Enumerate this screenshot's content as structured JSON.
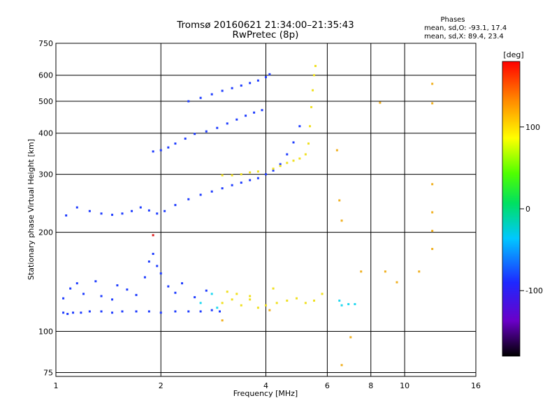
{
  "chart_data": {
    "type": "scatter",
    "title_line1": "Tromsø 20160621 21:34:00–21:35:43",
    "title_line2": "RwPretec (8p)",
    "xlabel": "Frequency [MHz]",
    "ylabel": "Stationary phase Virtual Height [km]",
    "x_scale": "log",
    "y_scale": "log",
    "xlim": [
      1,
      16
    ],
    "ylim": [
      73,
      750
    ],
    "x_ticks": [
      1,
      2,
      4,
      6,
      8,
      10,
      16
    ],
    "x_tick_labels": [
      "1",
      "2",
      "4",
      "6",
      "8",
      "10",
      "16"
    ],
    "y_ticks": [
      75,
      100,
      200,
      300,
      400,
      500,
      600,
      750
    ],
    "y_tick_labels": [
      "75",
      "100",
      "200",
      "300",
      "400",
      "500",
      "600",
      "750"
    ],
    "grid": true,
    "stats": {
      "header": "Phases",
      "line1": "mean, sd,O: -93.1, 17.4",
      "line2": "mean, sd,X:  89.4, 23.4"
    },
    "colorbar": {
      "label": "[deg]",
      "range": [
        -180,
        180
      ],
      "ticks": [
        100,
        0,
        -100
      ],
      "tick_labels": [
        "100",
        "0",
        "-100"
      ]
    },
    "series": [
      {
        "points": [
          [
            1.05,
            114
          ],
          [
            1.08,
            113
          ],
          [
            1.12,
            114
          ],
          [
            1.18,
            114
          ],
          [
            1.25,
            115
          ],
          [
            1.35,
            115
          ],
          [
            1.45,
            114
          ],
          [
            1.55,
            115
          ],
          [
            1.7,
            115
          ],
          [
            1.85,
            115
          ],
          [
            2.0,
            114
          ],
          [
            2.2,
            115
          ],
          [
            2.4,
            115
          ],
          [
            2.6,
            115
          ],
          [
            2.8,
            116
          ],
          [
            2.95,
            115
          ],
          [
            1.05,
            126
          ],
          [
            1.1,
            135
          ],
          [
            1.15,
            140
          ],
          [
            1.2,
            130
          ],
          [
            1.3,
            142
          ],
          [
            1.35,
            128
          ],
          [
            1.45,
            125
          ],
          [
            1.5,
            138
          ],
          [
            1.6,
            134
          ],
          [
            1.7,
            129
          ],
          [
            1.8,
            146
          ],
          [
            1.85,
            163
          ],
          [
            1.9,
            172
          ],
          [
            1.95,
            158
          ],
          [
            2.0,
            150
          ],
          [
            2.1,
            137
          ],
          [
            2.2,
            131
          ],
          [
            2.3,
            140
          ],
          [
            2.5,
            127
          ],
          [
            2.7,
            133
          ],
          [
            1.07,
            225
          ],
          [
            1.15,
            238
          ],
          [
            1.25,
            232
          ],
          [
            1.35,
            228
          ],
          [
            1.45,
            226
          ],
          [
            1.55,
            228
          ],
          [
            1.65,
            232
          ],
          [
            1.75,
            238
          ],
          [
            1.85,
            233
          ],
          [
            1.95,
            228
          ],
          [
            2.05,
            232
          ],
          [
            2.2,
            242
          ],
          [
            2.4,
            252
          ],
          [
            2.6,
            260
          ],
          [
            2.8,
            266
          ],
          [
            3.0,
            272
          ],
          [
            3.2,
            278
          ],
          [
            3.4,
            283
          ],
          [
            3.6,
            288
          ],
          [
            3.8,
            292
          ],
          [
            4.0,
            300
          ],
          [
            4.2,
            308
          ],
          [
            4.4,
            322
          ],
          [
            4.6,
            345
          ],
          [
            4.8,
            375
          ],
          [
            5.0,
            420
          ],
          [
            1.9,
            352
          ],
          [
            2.0,
            355
          ],
          [
            2.1,
            362
          ],
          [
            2.2,
            372
          ],
          [
            2.35,
            385
          ],
          [
            2.5,
            398
          ],
          [
            2.7,
            405
          ],
          [
            2.9,
            415
          ],
          [
            3.1,
            428
          ],
          [
            3.3,
            440
          ],
          [
            3.5,
            452
          ],
          [
            3.7,
            462
          ],
          [
            3.9,
            470
          ],
          [
            2.4,
            500
          ],
          [
            2.6,
            512
          ],
          [
            2.8,
            525
          ],
          [
            3.0,
            538
          ],
          [
            3.2,
            548
          ],
          [
            3.4,
            558
          ],
          [
            3.6,
            568
          ],
          [
            3.8,
            578
          ],
          [
            4.0,
            592
          ],
          [
            4.1,
            604
          ]
        ]
      },
      {
        "points": [
          [
            3.0,
            298
          ],
          [
            3.2,
            298
          ],
          [
            3.4,
            300
          ],
          [
            3.6,
            304
          ],
          [
            3.8,
            306
          ],
          [
            4.2,
            312
          ],
          [
            4.4,
            318
          ],
          [
            4.6,
            325
          ],
          [
            4.8,
            330
          ],
          [
            5.0,
            335
          ],
          [
            5.2,
            345
          ],
          [
            5.3,
            372
          ],
          [
            5.35,
            420
          ],
          [
            5.4,
            480
          ],
          [
            5.45,
            540
          ],
          [
            5.5,
            600
          ],
          [
            5.55,
            640
          ],
          [
            3.0,
            122
          ],
          [
            3.2,
            125
          ],
          [
            3.4,
            120
          ],
          [
            3.6,
            125
          ],
          [
            3.8,
            118
          ],
          [
            4.0,
            120
          ],
          [
            4.3,
            122
          ],
          [
            4.6,
            124
          ],
          [
            4.9,
            126
          ],
          [
            5.2,
            122
          ],
          [
            5.5,
            124
          ],
          [
            5.8,
            130
          ],
          [
            3.1,
            132
          ],
          [
            3.3,
            130
          ],
          [
            3.6,
            128
          ],
          [
            4.2,
            135
          ]
        ]
      },
      {
        "points": [
          [
            2.6,
            122
          ],
          [
            2.8,
            130
          ],
          [
            2.9,
            118
          ],
          [
            6.5,
            124
          ],
          [
            6.6,
            120
          ],
          [
            6.9,
            121
          ],
          [
            7.2,
            121
          ]
        ]
      },
      {
        "points": [
          [
            1.9,
            196
          ]
        ]
      },
      {
        "points": [
          [
            6.4,
            355
          ],
          [
            6.5,
            250
          ],
          [
            6.6,
            217
          ],
          [
            7.0,
            96
          ],
          [
            6.6,
            79
          ],
          [
            7.5,
            152
          ],
          [
            8.5,
            495
          ],
          [
            8.8,
            152
          ],
          [
            9.5,
            141
          ],
          [
            11.0,
            152
          ],
          [
            12.0,
            565
          ],
          [
            12.0,
            280
          ],
          [
            12.0,
            230
          ],
          [
            12.0,
            202
          ],
          [
            12.0,
            178
          ],
          [
            12.0,
            493
          ],
          [
            4.1,
            116
          ],
          [
            3.0,
            108
          ]
        ]
      }
    ]
  }
}
